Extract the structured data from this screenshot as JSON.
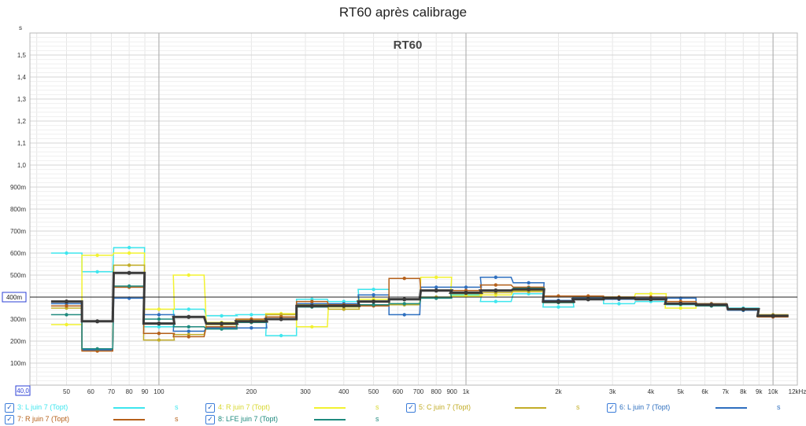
{
  "title": "RT60 après calibrage",
  "chart_data": {
    "type": "line",
    "title": "RT60 après calibrage",
    "inner_title": "RT60",
    "ylabel": "s",
    "xscale": "log",
    "xlim": [
      38,
      12000
    ],
    "ylim": [
      0.0,
      1.6
    ],
    "grid": true,
    "reference_line": 0.4,
    "reference_label": "400m",
    "xaxis_start_label": "40,0",
    "x_ticks": [
      {
        "v": 50,
        "t": "50"
      },
      {
        "v": 60,
        "t": "60"
      },
      {
        "v": 70,
        "t": "70"
      },
      {
        "v": 80,
        "t": "80"
      },
      {
        "v": 90,
        "t": "90"
      },
      {
        "v": 100,
        "t": "100"
      },
      {
        "v": 200,
        "t": "200"
      },
      {
        "v": 300,
        "t": "300"
      },
      {
        "v": 400,
        "t": "400"
      },
      {
        "v": 500,
        "t": "500"
      },
      {
        "v": 600,
        "t": "600"
      },
      {
        "v": 700,
        "t": "700"
      },
      {
        "v": 800,
        "t": "800"
      },
      {
        "v": 900,
        "t": "900"
      },
      {
        "v": 1000,
        "t": "1k"
      },
      {
        "v": 2000,
        "t": "2k"
      },
      {
        "v": 3000,
        "t": "3k"
      },
      {
        "v": 4000,
        "t": "4k"
      },
      {
        "v": 5000,
        "t": "5k"
      },
      {
        "v": 6000,
        "t": "6k"
      },
      {
        "v": 7000,
        "t": "7k"
      },
      {
        "v": 8000,
        "t": "8k"
      },
      {
        "v": 9000,
        "t": "9k"
      },
      {
        "v": 10000,
        "t": "10k"
      },
      {
        "v": 12000,
        "t": "12kHz"
      }
    ],
    "y_ticks": [
      {
        "v": 0.1,
        "t": "100m"
      },
      {
        "v": 0.2,
        "t": "200m"
      },
      {
        "v": 0.3,
        "t": "300m"
      },
      {
        "v": 0.5,
        "t": "500m"
      },
      {
        "v": 0.6,
        "t": "600m"
      },
      {
        "v": 0.7,
        "t": "700m"
      },
      {
        "v": 0.8,
        "t": "800m"
      },
      {
        "v": 0.9,
        "t": "900m"
      },
      {
        "v": 1.0,
        "t": "1,0"
      },
      {
        "v": 1.1,
        "t": "1,1"
      },
      {
        "v": 1.2,
        "t": "1,2"
      },
      {
        "v": 1.3,
        "t": "1,3"
      },
      {
        "v": 1.4,
        "t": "1,4"
      },
      {
        "v": 1.5,
        "t": "1,5"
      }
    ],
    "bands_hz": [
      50,
      63,
      80,
      100,
      125,
      160,
      200,
      250,
      315,
      400,
      500,
      630,
      800,
      1000,
      1250,
      1600,
      2000,
      2500,
      3150,
      4000,
      5000,
      6300,
      8000,
      10000
    ],
    "series": [
      {
        "name": "3: L juin 7 (Topt)",
        "color": "#3ee6ee",
        "width": 1.5,
        "values": [
          0.6,
          0.515,
          0.625,
          0.265,
          0.345,
          0.315,
          0.32,
          0.225,
          0.39,
          0.38,
          0.435,
          0.37,
          0.4,
          0.41,
          0.38,
          0.415,
          0.355,
          0.39,
          0.37,
          0.38,
          0.365,
          0.37,
          0.35,
          0.315
        ]
      },
      {
        "name": "4: R juin 7 (Topt)",
        "color": "#f2f230",
        "width": 1.5,
        "values": [
          0.275,
          0.59,
          0.6,
          0.345,
          0.5,
          0.285,
          0.295,
          0.325,
          0.265,
          0.355,
          0.39,
          0.37,
          0.49,
          0.405,
          0.41,
          0.43,
          0.38,
          0.39,
          0.4,
          0.415,
          0.35,
          0.36,
          0.34,
          0.315
        ]
      },
      {
        "name": "5: C juin 7 (Topt)",
        "color": "#c2ad27",
        "width": 1.5,
        "values": [
          0.35,
          0.16,
          0.545,
          0.205,
          0.23,
          0.275,
          0.285,
          0.32,
          0.365,
          0.345,
          0.38,
          0.365,
          0.4,
          0.415,
          0.42,
          0.425,
          0.375,
          0.4,
          0.4,
          0.39,
          0.37,
          0.365,
          0.345,
          0.32
        ]
      },
      {
        "name": "6: L juin 7 (Topt)",
        "color": "#2e6fbf",
        "width": 1.5,
        "values": [
          0.37,
          0.16,
          0.395,
          0.32,
          0.245,
          0.26,
          0.26,
          0.31,
          0.37,
          0.37,
          0.41,
          0.32,
          0.445,
          0.445,
          0.49,
          0.465,
          0.385,
          0.395,
          0.39,
          0.395,
          0.395,
          0.36,
          0.34,
          0.315
        ]
      },
      {
        "name": "7: R juin 7 (Topt)",
        "color": "#b5601a",
        "width": 1.5,
        "values": [
          0.36,
          0.155,
          0.445,
          0.235,
          0.22,
          0.265,
          0.3,
          0.31,
          0.38,
          0.365,
          0.36,
          0.485,
          0.43,
          0.43,
          0.455,
          0.445,
          0.405,
          0.405,
          0.4,
          0.4,
          0.38,
          0.37,
          0.345,
          0.31
        ]
      },
      {
        "name": "8: LFE juin 7 (Topt)",
        "color": "#1f8a7e",
        "width": 1.5,
        "values": [
          0.32,
          0.165,
          0.45,
          0.3,
          0.265,
          0.255,
          0.285,
          0.3,
          0.355,
          0.36,
          0.365,
          0.37,
          0.395,
          0.42,
          0.43,
          0.44,
          0.375,
          0.39,
          0.395,
          0.39,
          0.37,
          0.36,
          0.345,
          0.315
        ]
      },
      {
        "name": "",
        "color": "#3a3a3a",
        "width": 3,
        "values": [
          0.38,
          0.29,
          0.51,
          0.28,
          0.31,
          0.28,
          0.29,
          0.3,
          0.36,
          0.36,
          0.38,
          0.39,
          0.43,
          0.42,
          0.43,
          0.435,
          0.38,
          0.39,
          0.395,
          0.39,
          0.37,
          0.365,
          0.345,
          0.315
        ]
      }
    ]
  },
  "legend": [
    {
      "label": "3: L juin 7 (Topt)",
      "color": "#3ee6ee",
      "unit": "s"
    },
    {
      "label": "4: R juin 7 (Topt)",
      "color": "#e8e83a",
      "unit": "s"
    },
    {
      "label": "5: C juin 7 (Topt)",
      "color": "#c2ad27",
      "unit": "s"
    },
    {
      "label": "6: L juin 7 (Topt)",
      "color": "#2e6fbf",
      "unit": "s"
    },
    {
      "label": "7: R juin 7 (Topt)",
      "color": "#b5601a",
      "unit": "s"
    },
    {
      "label": "8: LFE juin 7 (Topt)",
      "color": "#1f8a7e",
      "unit": "s"
    }
  ]
}
